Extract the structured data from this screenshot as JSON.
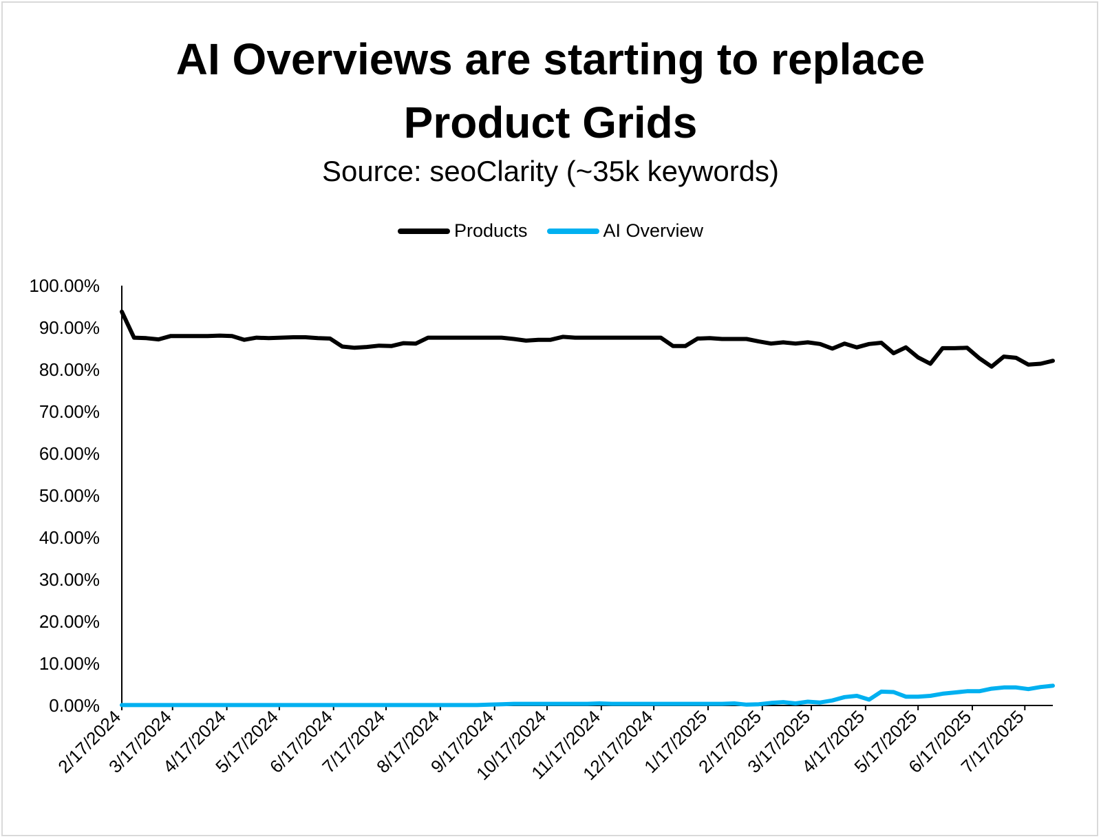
{
  "chart_data": {
    "type": "line",
    "title_line1": "AI Overviews are starting to replace",
    "title_line2": "Product Grids",
    "subtitle": "Source: seoClarity (~35k keywords)",
    "xlabel": "",
    "ylabel": "",
    "ylim": [
      0,
      100
    ],
    "grid": false,
    "legend_position": "top-center",
    "y_ticks": [
      "0.00%",
      "10.00%",
      "20.00%",
      "30.00%",
      "40.00%",
      "50.00%",
      "60.00%",
      "70.00%",
      "80.00%",
      "90.00%",
      "100.00%"
    ],
    "x_ticks": [
      "2/17/2024",
      "3/17/2024",
      "4/17/2024",
      "5/17/2024",
      "6/17/2024",
      "7/17/2024",
      "8/17/2024",
      "9/17/2024",
      "10/17/2024",
      "11/17/2024",
      "12/17/2024",
      "1/17/2025",
      "2/17/2025",
      "3/17/2025",
      "4/17/2025",
      "5/17/2025",
      "6/17/2025",
      "7/17/2025"
    ],
    "x_tick_days": [
      0,
      29,
      60,
      90,
      121,
      151,
      182,
      213,
      243,
      274,
      304,
      335,
      366,
      394,
      425,
      455,
      486,
      516
    ],
    "x_range_days": [
      0,
      532
    ],
    "series": [
      {
        "name": "Products",
        "color": "#000000",
        "x_days": [
          0,
          7,
          14,
          21,
          28,
          35,
          42,
          49,
          56,
          63,
          70,
          77,
          84,
          91,
          98,
          105,
          112,
          119,
          126,
          133,
          140,
          147,
          154,
          161,
          168,
          175,
          182,
          189,
          196,
          203,
          210,
          217,
          224,
          231,
          238,
          245,
          252,
          259,
          266,
          273,
          280,
          287,
          294,
          301,
          308,
          315,
          322,
          329,
          336,
          343,
          350,
          357,
          364,
          371,
          378,
          385,
          392,
          399,
          406,
          413,
          420,
          427,
          434,
          441,
          448,
          455,
          462,
          469,
          476,
          483,
          490,
          497,
          504,
          511,
          518,
          525,
          532
        ],
        "values": [
          93.8,
          87.6,
          87.5,
          87.2,
          88.0,
          88.0,
          88.0,
          88.0,
          88.1,
          88.0,
          87.1,
          87.6,
          87.5,
          87.6,
          87.7,
          87.7,
          87.5,
          87.4,
          85.5,
          85.2,
          85.4,
          85.7,
          85.6,
          86.3,
          86.2,
          87.6,
          87.6,
          87.6,
          87.6,
          87.6,
          87.6,
          87.6,
          87.3,
          86.9,
          87.1,
          87.1,
          87.8,
          87.6,
          87.6,
          87.6,
          87.6,
          87.6,
          87.6,
          87.6,
          87.6,
          85.6,
          85.6,
          87.4,
          87.5,
          87.3,
          87.3,
          87.3,
          86.7,
          86.2,
          86.5,
          86.2,
          86.5,
          86.1,
          85.0,
          86.2,
          85.3,
          86.1,
          86.4,
          83.9,
          85.3,
          82.9,
          81.4,
          85.1,
          85.1,
          85.2,
          82.7,
          80.7,
          83.1,
          82.8,
          81.2,
          81.4,
          82.1
        ]
      },
      {
        "name": "AI Overview",
        "color": "#00b0f0",
        "x_days": [
          0,
          7,
          14,
          21,
          28,
          35,
          42,
          49,
          56,
          63,
          70,
          77,
          84,
          91,
          98,
          105,
          112,
          119,
          126,
          133,
          140,
          147,
          154,
          161,
          168,
          175,
          182,
          189,
          196,
          203,
          210,
          217,
          224,
          231,
          238,
          245,
          252,
          259,
          266,
          273,
          280,
          287,
          294,
          301,
          308,
          315,
          322,
          329,
          336,
          343,
          350,
          357,
          364,
          371,
          378,
          385,
          392,
          399,
          406,
          413,
          420,
          427,
          434,
          441,
          448,
          455,
          462,
          469,
          476,
          483,
          490,
          497,
          504,
          511,
          518,
          525,
          532
        ],
        "values": [
          0.1,
          0.1,
          0.1,
          0.1,
          0.1,
          0.1,
          0.1,
          0.1,
          0.1,
          0.1,
          0.1,
          0.1,
          0.1,
          0.1,
          0.1,
          0.1,
          0.1,
          0.1,
          0.1,
          0.1,
          0.1,
          0.1,
          0.1,
          0.1,
          0.1,
          0.1,
          0.1,
          0.1,
          0.1,
          0.1,
          0.2,
          0.3,
          0.4,
          0.4,
          0.4,
          0.4,
          0.4,
          0.4,
          0.4,
          0.5,
          0.4,
          0.4,
          0.4,
          0.4,
          0.4,
          0.4,
          0.4,
          0.4,
          0.4,
          0.4,
          0.5,
          0.2,
          0.3,
          0.6,
          0.8,
          0.5,
          0.9,
          0.7,
          1.2,
          2.0,
          2.3,
          1.4,
          3.3,
          3.2,
          2.1,
          2.1,
          2.3,
          2.8,
          3.1,
          3.4,
          3.4,
          4.0,
          4.3,
          4.3,
          3.9,
          4.4,
          4.7
        ]
      }
    ]
  }
}
